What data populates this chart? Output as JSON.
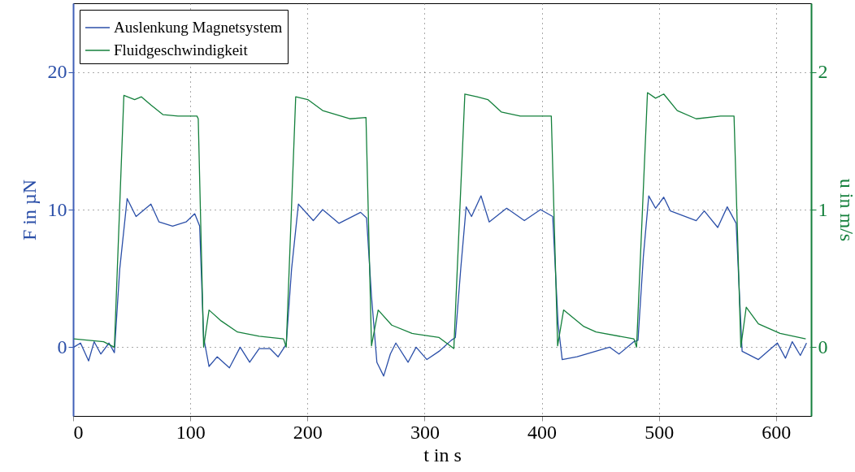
{
  "chart_data": {
    "type": "line",
    "xlabel": "t in s",
    "ylabel": "F in µN",
    "y2label": "u in m/s",
    "xlim": [
      0,
      630
    ],
    "xticks": [
      0,
      100,
      200,
      300,
      400,
      500,
      600
    ],
    "ylim": [
      -5,
      25
    ],
    "yticks": [
      0,
      10,
      20
    ],
    "y2lim": [
      -0.5,
      2.5
    ],
    "y2ticks": [
      0,
      1,
      2
    ],
    "grid": true,
    "legend": "top left",
    "series": [
      {
        "name": "Auslenkung Magnetsystem",
        "color": "#2b4fa8",
        "x": [
          0.5,
          6.3,
          13.2,
          17.9,
          23.6,
          30.6,
          35.2,
          39.8,
          46.1,
          53.7,
          66.4,
          73.3,
          84.9,
          96.4,
          103.8,
          108,
          111.4,
          116,
          123,
          133.4,
          142.6,
          150.7,
          158.8,
          168,
          175,
          181.9,
          186.5,
          192.3,
          205,
          213,
          227,
          245.4,
          250.5,
          254.7,
          259.3,
          265.1,
          270.8,
          275.5,
          285.9,
          292.8,
          302,
          312.4,
          322.8,
          326.3,
          330.9,
          335.5,
          340.1,
          348.2,
          355.2,
          370.1,
          385.2,
          399,
          409.4,
          414,
          417.5,
          430.2,
          457.9,
          466,
          478.7,
          482.2,
          486.8,
          491.4,
          497.2,
          504.2,
          509.9,
          531.9,
          538.8,
          550.3,
          558.4,
          566,
          571.1,
          585,
          601.2,
          608.1,
          613.9,
          620.8,
          626.1
        ],
        "values": [
          0,
          0.3,
          -1.0,
          0.4,
          -0.5,
          0.3,
          -0.4,
          5.7,
          10.8,
          9.5,
          10.4,
          9.1,
          8.8,
          9.1,
          9.7,
          8.8,
          0.7,
          -1.4,
          -0.7,
          -1.5,
          0,
          -1.1,
          -0.1,
          -0.1,
          -0.7,
          0.2,
          5.7,
          10.4,
          9.2,
          10.0,
          9.0,
          9.8,
          9.4,
          3.7,
          -1.1,
          -2.1,
          -0.5,
          0.3,
          -1.1,
          0,
          -0.9,
          -0.3,
          0.5,
          0.7,
          5.7,
          10.2,
          9.5,
          11.0,
          9.1,
          10.1,
          9.2,
          10.0,
          9.5,
          1.7,
          -0.9,
          -0.7,
          0,
          -0.5,
          0.4,
          0.5,
          6.6,
          11.0,
          10.1,
          10.9,
          9.9,
          9.2,
          9.9,
          8.7,
          10.2,
          9.0,
          -0.3,
          -0.9,
          0.3,
          -0.8,
          0.4,
          -0.6,
          0.3
        ]
      },
      {
        "name": "Fluidgeschwindigkeit",
        "color": "#14803c",
        "axis": "y2",
        "x": [
          0.5,
          26,
          35.2,
          43.3,
          52.5,
          58.3,
          66.4,
          76.8,
          89.5,
          105.7,
          106.8,
          111.4,
          116,
          126.5,
          140.3,
          158.8,
          179.6,
          181.9,
          190,
          200.3,
          213,
          236.2,
          250,
          254.7,
          260.4,
          272,
          289.3,
          312.4,
          325,
          334.4,
          344.8,
          354,
          365.5,
          381.7,
          408.2,
          413.6,
          418.7,
          436,
          446.4,
          478.7,
          481,
          490.3,
          497.2,
          504.2,
          515.7,
          531.9,
          552.7,
          564.2,
          570,
          574.6,
          585,
          603.5,
          625.4
        ],
        "values": [
          0.06,
          0.04,
          0.0,
          1.83,
          1.8,
          1.82,
          1.76,
          1.69,
          1.68,
          1.68,
          1.66,
          0.0,
          0.27,
          0.19,
          0.11,
          0.08,
          0.06,
          0.0,
          1.82,
          1.8,
          1.72,
          1.66,
          1.67,
          0.01,
          0.27,
          0.16,
          0.1,
          0.07,
          -0.01,
          1.84,
          1.82,
          1.8,
          1.71,
          1.68,
          1.68,
          0.01,
          0.27,
          0.15,
          0.11,
          0.06,
          0.0,
          1.85,
          1.81,
          1.84,
          1.72,
          1.66,
          1.68,
          1.68,
          0.0,
          0.29,
          0.17,
          0.1,
          0.06
        ]
      }
    ]
  }
}
